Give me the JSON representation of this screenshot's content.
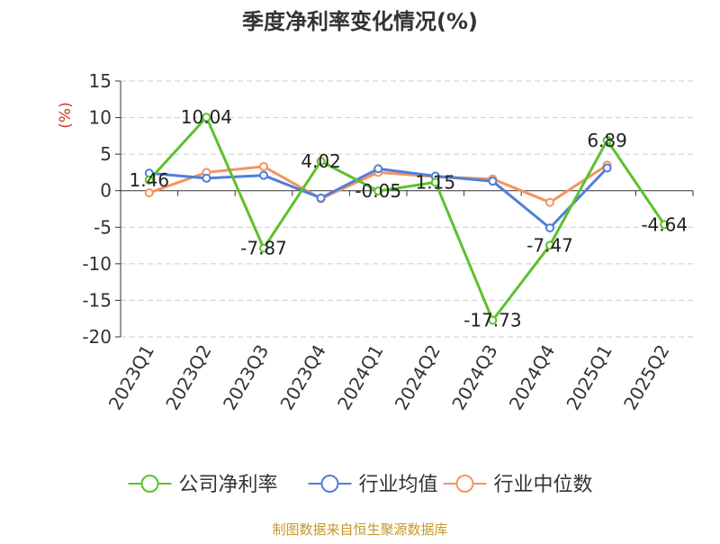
{
  "chart_data": {
    "type": "line",
    "title": "季度净利率变化情况(%)",
    "ylabel": "(%)",
    "categories": [
      "2023Q1",
      "2023Q2",
      "2023Q3",
      "2023Q4",
      "2024Q1",
      "2024Q2",
      "2024Q3",
      "2024Q4",
      "2025Q1",
      "2025Q2"
    ],
    "ylim": [
      -20,
      15
    ],
    "yticks": [
      "15",
      "10",
      "5",
      "0",
      "-5",
      "-10",
      "-15",
      "-20"
    ],
    "grid": true,
    "legend_position": "bottom",
    "series": [
      {
        "name": "公司净利率",
        "color": "#5cc12c",
        "values": [
          1.46,
          10.04,
          -7.87,
          4.02,
          -0.05,
          1.15,
          -17.73,
          -7.47,
          6.89,
          -4.64
        ],
        "labels": [
          "1.46",
          "10.04",
          "-7.87",
          "4.02",
          "-0.05",
          "1.15",
          "-17.73",
          "-7.47",
          "6.89",
          "-4.64"
        ]
      },
      {
        "name": "行业均值",
        "color": "#4f7fdb",
        "values": [
          2.4,
          1.7,
          2.1,
          -1.0,
          3.0,
          2.0,
          1.3,
          -5.1,
          3.1,
          null
        ]
      },
      {
        "name": "行业中位数",
        "color": "#f59462",
        "values": [
          -0.3,
          2.5,
          3.3,
          -1.1,
          2.5,
          1.9,
          1.6,
          -1.6,
          3.5,
          null
        ]
      }
    ],
    "source": "制图数据来自恒生聚源数据库",
    "source_color": "#c8962a",
    "title_color": "#333333",
    "ylabel_color": "#e03020",
    "label_color": "#222222"
  }
}
